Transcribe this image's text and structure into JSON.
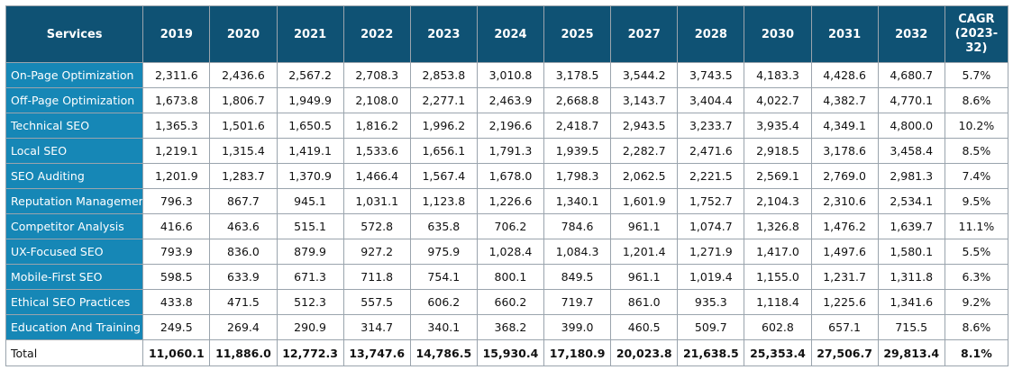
{
  "table": {
    "header_services": "Services",
    "years": [
      "2019",
      "2020",
      "2021",
      "2022",
      "2023",
      "2024",
      "2025",
      "2027",
      "2028",
      "2030",
      "2031",
      "2032"
    ],
    "cagr_header": "CAGR (2023-32)",
    "rows": [
      {
        "service": "On-Page Optimization",
        "values": [
          "2,311.6",
          "2,436.6",
          "2,567.2",
          "2,708.3",
          "2,853.8",
          "3,010.8",
          "3,178.5",
          "3,544.2",
          "3,743.5",
          "4,183.3",
          "4,428.6",
          "4,680.7"
        ],
        "cagr": "5.7%"
      },
      {
        "service": "Off-Page Optimization",
        "values": [
          "1,673.8",
          "1,806.7",
          "1,949.9",
          "2,108.0",
          "2,277.1",
          "2,463.9",
          "2,668.8",
          "3,143.7",
          "3,404.4",
          "4,022.7",
          "4,382.7",
          "4,770.1"
        ],
        "cagr": "8.6%"
      },
      {
        "service": "Technical SEO",
        "values": [
          "1,365.3",
          "1,501.6",
          "1,650.5",
          "1,816.2",
          "1,996.2",
          "2,196.6",
          "2,418.7",
          "2,943.5",
          "3,233.7",
          "3,935.4",
          "4,349.1",
          "4,800.0"
        ],
        "cagr": "10.2%"
      },
      {
        "service": "Local SEO",
        "values": [
          "1,219.1",
          "1,315.4",
          "1,419.1",
          "1,533.6",
          "1,656.1",
          "1,791.3",
          "1,939.5",
          "2,282.7",
          "2,471.6",
          "2,918.5",
          "3,178.6",
          "3,458.4"
        ],
        "cagr": "8.5%"
      },
      {
        "service": "SEO Auditing",
        "values": [
          "1,201.9",
          "1,283.7",
          "1,370.9",
          "1,466.4",
          "1,567.4",
          "1,678.0",
          "1,798.3",
          "2,062.5",
          "2,221.5",
          "2,569.1",
          "2,769.0",
          "2,981.3"
        ],
        "cagr": "7.4%"
      },
      {
        "service": "Reputation Management",
        "values": [
          "796.3",
          "867.7",
          "945.1",
          "1,031.1",
          "1,123.8",
          "1,226.6",
          "1,340.1",
          "1,601.9",
          "1,752.7",
          "2,104.3",
          "2,310.6",
          "2,534.1"
        ],
        "cagr": "9.5%"
      },
      {
        "service": "Competitor Analysis",
        "values": [
          "416.6",
          "463.6",
          "515.1",
          "572.8",
          "635.8",
          "706.2",
          "784.6",
          "961.1",
          "1,074.7",
          "1,326.8",
          "1,476.2",
          "1,639.7"
        ],
        "cagr": "11.1%"
      },
      {
        "service": "UX-Focused SEO",
        "values": [
          "793.9",
          "836.0",
          "879.9",
          "927.2",
          "975.9",
          "1,028.4",
          "1,084.3",
          "1,201.4",
          "1,271.9",
          "1,417.0",
          "1,497.6",
          "1,580.1"
        ],
        "cagr": "5.5%"
      },
      {
        "service": "Mobile-First SEO",
        "values": [
          "598.5",
          "633.9",
          "671.3",
          "711.8",
          "754.1",
          "800.1",
          "849.5",
          "961.1",
          "1,019.4",
          "1,155.0",
          "1,231.7",
          "1,311.8"
        ],
        "cagr": "6.3%"
      },
      {
        "service": "Ethical SEO Practices",
        "values": [
          "433.8",
          "471.5",
          "512.3",
          "557.5",
          "606.2",
          "660.2",
          "719.7",
          "861.0",
          "935.3",
          "1,118.4",
          "1,225.6",
          "1,341.6"
        ],
        "cagr": "9.2%"
      },
      {
        "service": "Education And Training",
        "values": [
          "249.5",
          "269.4",
          "290.9",
          "314.7",
          "340.1",
          "368.2",
          "399.0",
          "460.5",
          "509.7",
          "602.8",
          "657.1",
          "715.5"
        ],
        "cagr": "8.6%"
      }
    ],
    "total": {
      "service": "Total",
      "values": [
        "11,060.1",
        "11,886.0",
        "12,772.3",
        "13,747.6",
        "14,786.5",
        "15,930.4",
        "17,180.9",
        "20,023.8",
        "21,638.5",
        "25,353.4",
        "27,506.7",
        "29,813.4"
      ],
      "cagr": "8.1%"
    }
  },
  "colors": {
    "header_bg": "#0f5274",
    "service_bg": "#1687b6",
    "grid": "#9aa4ad"
  }
}
